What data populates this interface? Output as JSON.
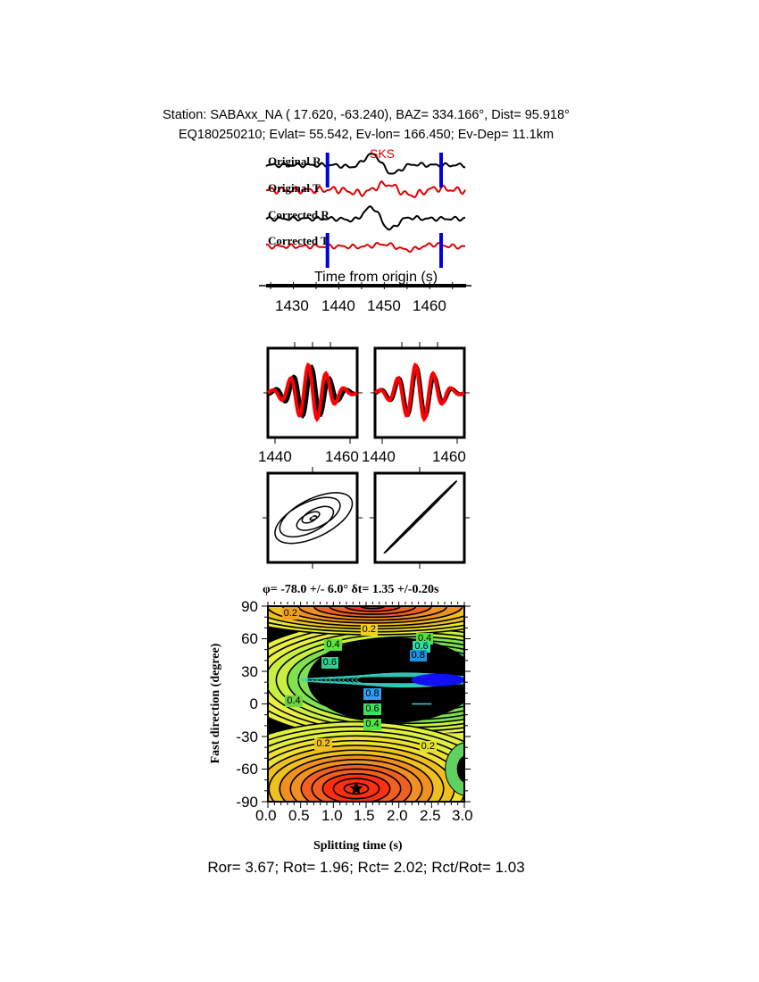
{
  "header": {
    "line1": "Station: SABAxx_NA (  17.620,  -63.240), BAZ=  334.166°, Dist=   95.918°",
    "line2": "EQ180250210; Evlat=  55.542, Ev-lon= 166.450; Ev-Dep= 11.1km"
  },
  "footer": {
    "ratios": "Ror= 3.67; Rot= 1.96; Rct= 2.02; Rct/Rot= 1.03"
  },
  "chart_data": [
    {
      "type": "line",
      "xlabel": "Time from origin (s)",
      "xlim": [
        1424,
        1468
      ],
      "xticks": [
        "1430",
        "1440",
        "1450",
        "1460"
      ],
      "phase_label": "SKS",
      "analysis_window": [
        1437.5,
        1462.5
      ],
      "series": [
        {
          "name": "Original R",
          "color": "#000000"
        },
        {
          "name": "Original T",
          "color": "#e00000"
        },
        {
          "name": "Corrected R",
          "color": "#000000"
        },
        {
          "name": "Corrected T",
          "color": "#e00000"
        }
      ],
      "window_color": "#0000e0"
    },
    {
      "type": "line",
      "panels": [
        {
          "xticks": [
            "1440",
            "1460"
          ]
        },
        {
          "xticks": [
            "1440",
            "1460"
          ]
        }
      ],
      "colors": [
        "#000000",
        "#ff0000"
      ]
    },
    {
      "type": "line",
      "panels": [
        "particle-motion-original",
        "particle-motion-corrected"
      ]
    },
    {
      "type": "heatmap",
      "title": "φ= -78.0 +/- 6.0° δt= 1.35 +/-0.20s",
      "xlabel": "Splitting time (s)",
      "ylabel": "Fast direction (degree)",
      "xlim": [
        0,
        3
      ],
      "ylim": [
        -90,
        90
      ],
      "xticks": [
        "0.0",
        "0.5",
        "1.0",
        "1.5",
        "2.0",
        "2.5",
        "3.0"
      ],
      "yticks": [
        "90",
        "60",
        "30",
        "0",
        "-30",
        "-60",
        "-90"
      ],
      "best_fit": {
        "phi": -78.0,
        "dt": 1.35
      },
      "minimum_region_center": {
        "phi": 22,
        "dt": 2.6
      },
      "contour_labels": [
        {
          "text": "0.2",
          "dt": 0.35,
          "phi": 83,
          "color": "#f0a020"
        },
        {
          "text": "0.2",
          "dt": 1.55,
          "phi": 68,
          "color": "#f0d020"
        },
        {
          "text": "0.4",
          "dt": 1.0,
          "phi": 54,
          "color": "#60e040"
        },
        {
          "text": "0.6",
          "dt": 0.95,
          "phi": 37,
          "color": "#30d090"
        },
        {
          "text": "0.4",
          "dt": 0.4,
          "phi": 2,
          "color": "#70d040"
        },
        {
          "text": "0.4",
          "dt": 2.4,
          "phi": 60,
          "color": "#50e040"
        },
        {
          "text": "0.6",
          "dt": 2.35,
          "phi": 52,
          "color": "#30e0a0"
        },
        {
          "text": "0.8",
          "dt": 2.3,
          "phi": 44,
          "color": "#2090e0"
        },
        {
          "text": "0.8",
          "dt": 1.6,
          "phi": 9,
          "color": "#30a0f0"
        },
        {
          "text": "0.6",
          "dt": 1.6,
          "phi": -5,
          "color": "#40e060"
        },
        {
          "text": "0.4",
          "dt": 1.6,
          "phi": -19,
          "color": "#50e040"
        },
        {
          "text": "0.2",
          "dt": 0.85,
          "phi": -37,
          "color": "#f0c020"
        },
        {
          "text": "0.2",
          "dt": 2.45,
          "phi": -40,
          "color": "#e0e030"
        }
      ]
    }
  ]
}
